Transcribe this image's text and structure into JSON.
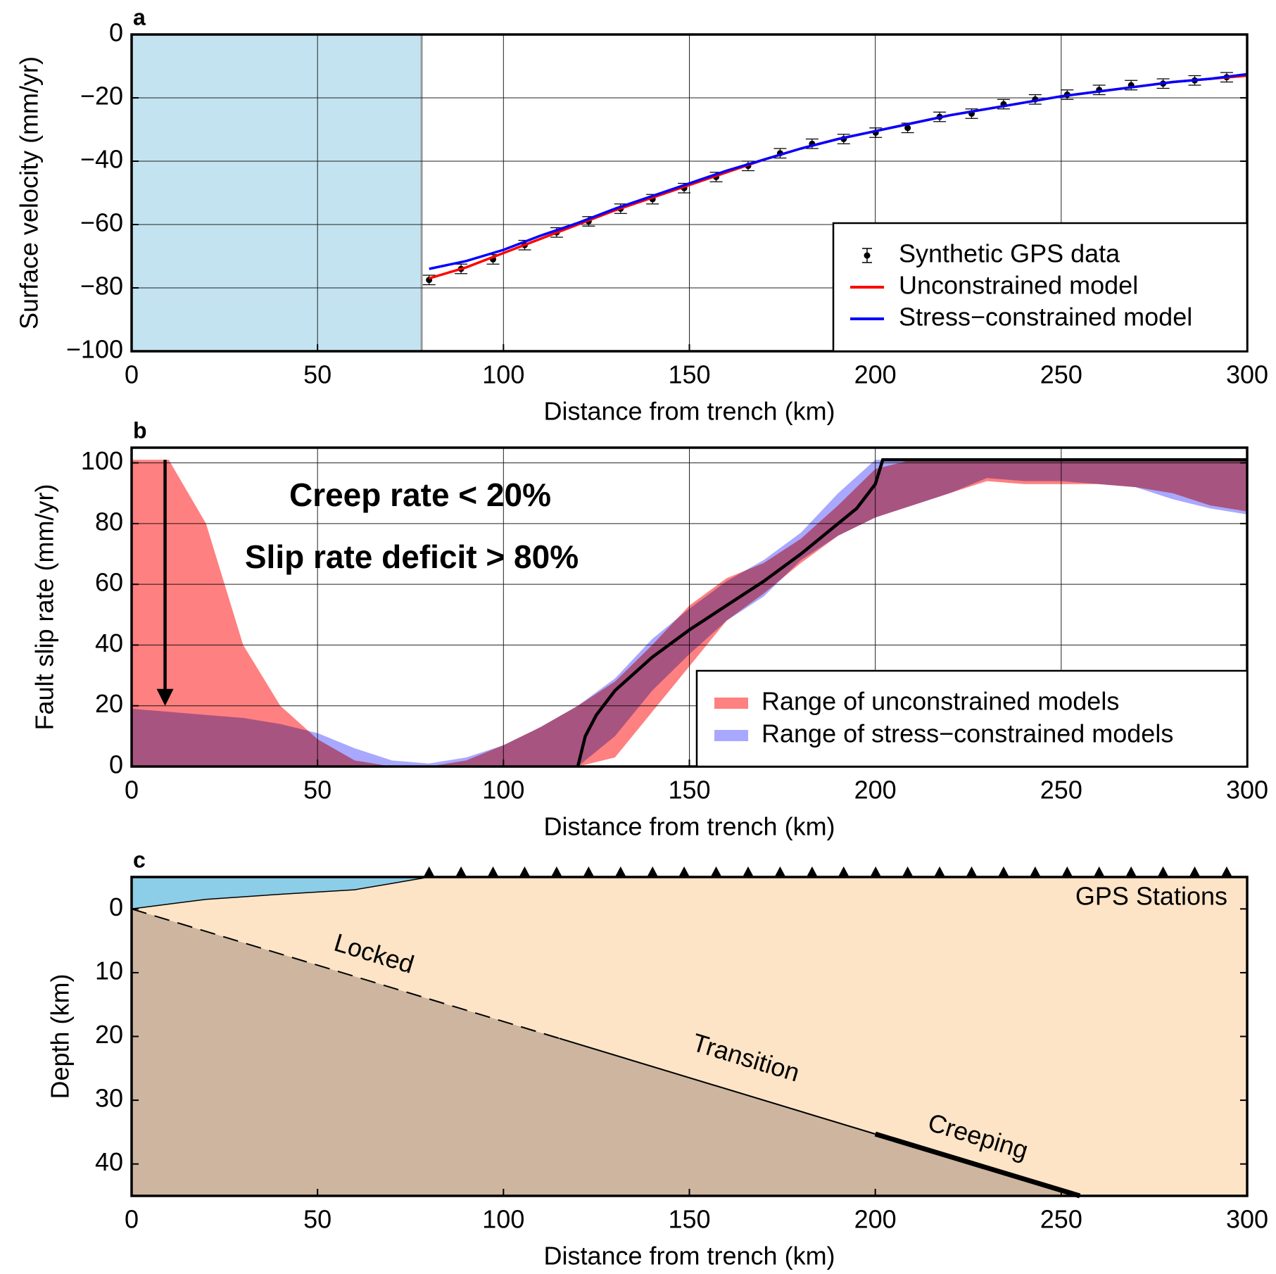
{
  "chart_data": [
    {
      "type": "line",
      "panel_label": "a",
      "xlabel": "Distance from trench (km)",
      "ylabel": "Surface velocity (mm/yr)",
      "xlim": [
        0,
        300
      ],
      "xticks": [
        0,
        50,
        100,
        150,
        200,
        250,
        300
      ],
      "ylim": [
        -100,
        0
      ],
      "yticks": [
        {
          "value": -100,
          "label": "−100"
        },
        {
          "value": -80,
          "label": "−80"
        },
        {
          "value": -60,
          "label": "−60"
        },
        {
          "value": -40,
          "label": "−40"
        },
        {
          "value": -20,
          "label": "−20"
        },
        0
      ],
      "grid": true,
      "legend": "lower right",
      "shaded_xrange": [
        0,
        78
      ],
      "shade_color": "#c3e3f1",
      "series": [
        {
          "name": "Synthetic GPS data",
          "color": "#000000",
          "x": [
            80,
            88.6,
            97.2,
            105.7,
            114.3,
            122.9,
            131.5,
            140.1,
            148.6,
            157.2,
            165.8,
            174.4,
            183,
            191.5,
            200.1,
            208.7,
            217.3,
            225.9,
            234.5,
            243,
            251.6,
            260.2,
            268.8,
            277.4,
            285.9,
            294.5
          ],
          "values": [
            -77.5,
            -74,
            -71,
            -66.5,
            -62.5,
            -59,
            -55,
            -52,
            -48.5,
            -45,
            -41.5,
            -37.5,
            -34.5,
            -33,
            -31,
            -29.5,
            -26,
            -25,
            -22,
            -20.5,
            -19,
            -17.5,
            -16,
            -15.5,
            -14.5,
            -13.5
          ],
          "errors": [
            1.5,
            1.5,
            1.5,
            1.5,
            1.5,
            1.5,
            1.5,
            1.5,
            1.5,
            1.5,
            1.5,
            1.5,
            1.5,
            1.5,
            1.5,
            1.5,
            1.5,
            1.5,
            1.5,
            1.5,
            1.5,
            1.5,
            1.5,
            1.5,
            1.5,
            1.5
          ]
        },
        {
          "name": "Unconstrained model",
          "color": "#ff0000",
          "x": [
            80,
            90,
            100,
            110,
            120,
            130,
            140,
            150,
            160,
            170,
            180,
            190,
            200,
            210,
            220,
            230,
            240,
            250,
            260,
            270,
            280,
            290,
            300
          ],
          "values": [
            -77,
            -73.5,
            -69,
            -64.5,
            -60,
            -55.5,
            -51.5,
            -47.5,
            -43.5,
            -39.5,
            -36,
            -33,
            -30.5,
            -28,
            -25.5,
            -23.5,
            -21.5,
            -19.5,
            -18,
            -16.5,
            -15,
            -14,
            -13
          ]
        },
        {
          "name": "Stress−constrained model",
          "color": "#0000ff",
          "x": [
            80,
            90,
            100,
            110,
            120,
            130,
            140,
            150,
            160,
            170,
            180,
            190,
            200,
            210,
            220,
            230,
            240,
            250,
            260,
            270,
            280,
            290,
            300
          ],
          "values": [
            -74,
            -71.5,
            -68,
            -63.5,
            -59.5,
            -55,
            -51,
            -47,
            -43,
            -39.5,
            -36,
            -33,
            -30.5,
            -28,
            -25.5,
            -23.5,
            -21.5,
            -19.5,
            -18,
            -16.5,
            -15,
            -14,
            -12.5
          ]
        }
      ]
    },
    {
      "type": "area",
      "panel_label": "b",
      "xlabel": "Distance from trench (km)",
      "ylabel": "Fault slip rate (mm/yr)",
      "xlim": [
        0,
        300
      ],
      "xticks": [
        0,
        50,
        100,
        150,
        200,
        250,
        300
      ],
      "ylim": [
        0,
        105
      ],
      "yticks": [
        0,
        20,
        40,
        60,
        80,
        100
      ],
      "grid": true,
      "legend": "lower right",
      "bands": [
        {
          "name": "Range of unconstrained models",
          "color": "#ff8080",
          "x": [
            0,
            10,
            20,
            30,
            40,
            50,
            60,
            70,
            80,
            90,
            100,
            110,
            120,
            130,
            140,
            150,
            160,
            170,
            180,
            190,
            200,
            210,
            220,
            230,
            240,
            250,
            260,
            270,
            280,
            290,
            300
          ],
          "lower": [
            0,
            0,
            0,
            0,
            0,
            0,
            0,
            0,
            0,
            0,
            0,
            0,
            0,
            3,
            18,
            33,
            48,
            57,
            67,
            76,
            82,
            86,
            90,
            94,
            93,
            93,
            93,
            92,
            90,
            86,
            84
          ],
          "upper": [
            101,
            101,
            80,
            40,
            20,
            9,
            2,
            0,
            0,
            2,
            7,
            13,
            20,
            28,
            40,
            53,
            62,
            67,
            75,
            86,
            98,
            101,
            101,
            101,
            101,
            101,
            101,
            101,
            101,
            101,
            101
          ]
        },
        {
          "name": "Range of stress−constrained models",
          "color": "#a8a8ff",
          "x": [
            0,
            10,
            20,
            30,
            40,
            50,
            60,
            70,
            80,
            90,
            100,
            110,
            120,
            130,
            140,
            150,
            160,
            170,
            180,
            190,
            200,
            210,
            220,
            230,
            240,
            250,
            260,
            270,
            280,
            290,
            300
          ],
          "lower": [
            0,
            0,
            0,
            0,
            0,
            0,
            0,
            0,
            0,
            0,
            0,
            0,
            0,
            10,
            25,
            37,
            48,
            56,
            68,
            76,
            82,
            86,
            90,
            95,
            94,
            94,
            93,
            92,
            88,
            85,
            83
          ],
          "upper": [
            19,
            18,
            17,
            16,
            14,
            11,
            6,
            2,
            1,
            3,
            7,
            13,
            20,
            29,
            42,
            52,
            61,
            68,
            77,
            90,
            101,
            101,
            101,
            101,
            101,
            101,
            101,
            101,
            101,
            101,
            101
          ]
        }
      ],
      "series": [
        {
          "color": "#000000",
          "x": [
            120,
            122,
            125,
            130,
            140,
            150,
            160,
            170,
            180,
            190,
            195,
            200,
            202,
            300
          ],
          "values": [
            0,
            10,
            17,
            25,
            36,
            45,
            53,
            61,
            70,
            80,
            85,
            93,
            101,
            101
          ]
        }
      ],
      "annotations": [
        "Creep rate < 20%",
        "Slip rate deficit > 80%"
      ],
      "arrow": {
        "x": 9,
        "y_start": 101,
        "y_end": 20
      }
    },
    {
      "type": "cross-section",
      "panel_label": "c",
      "xlabel": "Distance from trench (km)",
      "ylabel": "Depth (km)",
      "xlim": [
        0,
        300
      ],
      "xticks": [
        0,
        50,
        100,
        150,
        200,
        250,
        300
      ],
      "ylim": [
        -5,
        45
      ],
      "yticks": [
        0,
        10,
        20,
        30,
        40
      ],
      "y_inverted": true,
      "land_color": "#fde4c6",
      "slab_color": "#cdb59f",
      "water": {
        "color": "#8ccde8",
        "x": [
          0,
          20,
          40,
          60,
          70,
          80
        ],
        "y": [
          0,
          -1.5,
          -2.3,
          -3,
          -4,
          -5
        ]
      },
      "stations": {
        "name": "GPS Stations",
        "color": "#000000",
        "x": [
          80,
          88.6,
          97.2,
          105.7,
          114.3,
          122.9,
          131.5,
          140.1,
          148.6,
          157.2,
          165.8,
          174.4,
          183,
          191.5,
          200.1,
          208.7,
          217.3,
          225.9,
          234.5,
          243,
          251.6,
          260.2,
          268.8,
          277.4,
          285.9,
          294.5
        ]
      },
      "fault": {
        "x": [
          0,
          115,
          200,
          255
        ],
        "y": [
          0,
          20.3,
          35.3,
          45
        ],
        "segments": [
          {
            "name": "Locked",
            "style": "dashed",
            "width": 2
          },
          {
            "name": "Transition",
            "style": "solid",
            "width": 2
          },
          {
            "name": "Creeping",
            "style": "solid",
            "width": 7
          }
        ]
      }
    }
  ]
}
